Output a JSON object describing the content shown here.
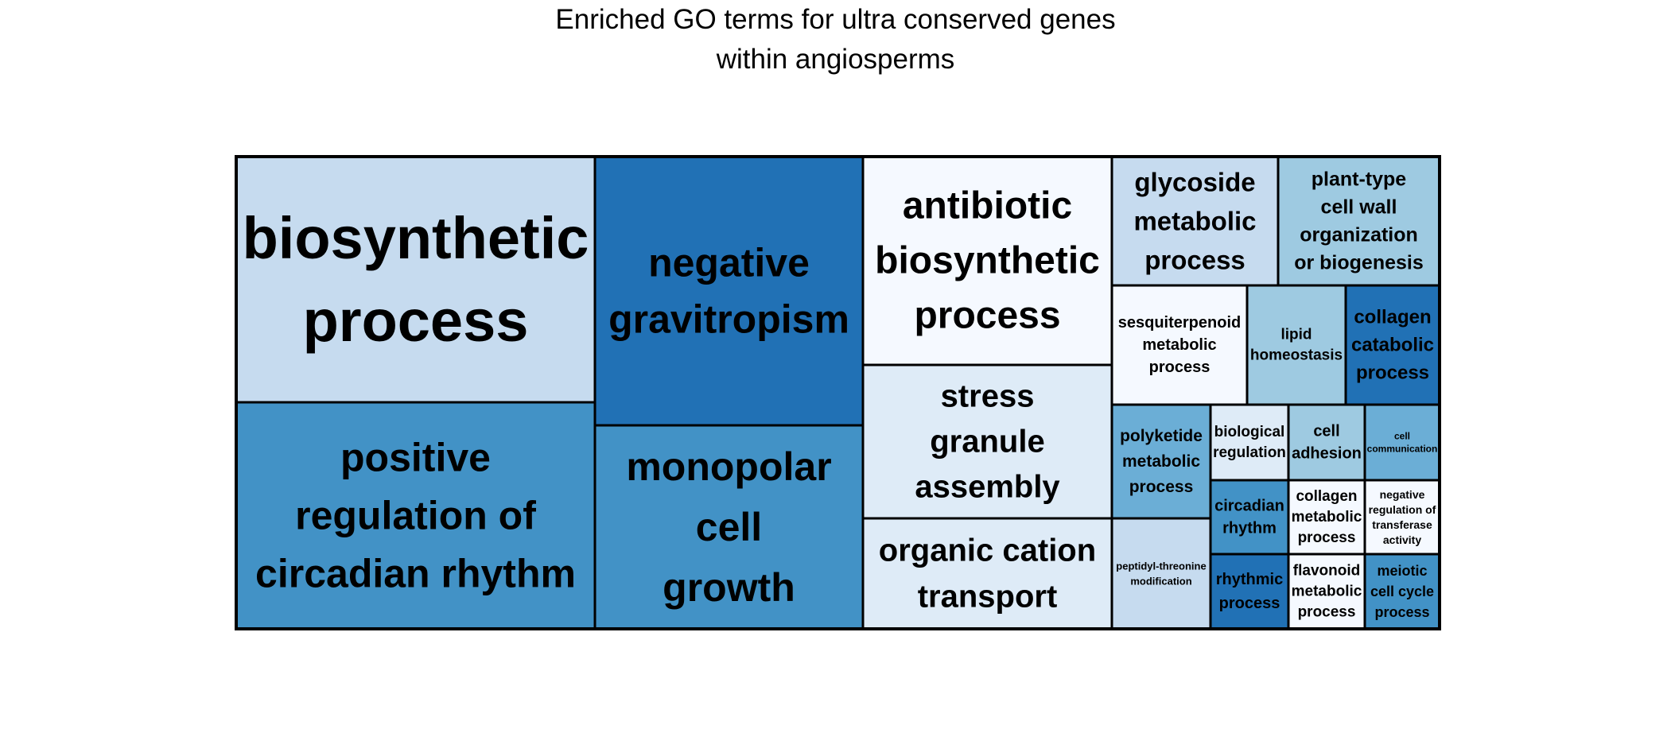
{
  "chart_data": {
    "type": "treemap",
    "title_lines": [
      "Enriched GO terms for ultra conserved genes",
      "within angiosperms"
    ],
    "colors": {
      "lightest": "#f5f9ff",
      "lighter": "#deebf7",
      "light": "#c6dbef",
      "mid_light": "#9ecae1",
      "mid": "#6baed6",
      "medium": "#4292c6",
      "dark": "#2171b5",
      "border": "#000000"
    },
    "tiles": [
      {
        "label": "biosynthetic process",
        "lines": [
          "biosynthetic",
          "process"
        ],
        "color": "light"
      },
      {
        "label": "positive regulation of circadian rhythm",
        "lines": [
          "positive",
          "regulation of",
          "circadian rhythm"
        ],
        "color": "medium"
      },
      {
        "label": "negative gravitropism",
        "lines": [
          "negative",
          "gravitropism"
        ],
        "color": "dark"
      },
      {
        "label": "monopolar cell growth",
        "lines": [
          "monopolar",
          "cell",
          "growth"
        ],
        "color": "medium"
      },
      {
        "label": "antibiotic biosynthetic process",
        "lines": [
          "antibiotic",
          "biosynthetic",
          "process"
        ],
        "color": "lightest"
      },
      {
        "label": "stress granule assembly",
        "lines": [
          "stress",
          "granule",
          "assembly"
        ],
        "color": "lighter"
      },
      {
        "label": "organic cation transport",
        "lines": [
          "organic cation",
          "transport"
        ],
        "color": "lighter"
      },
      {
        "label": "glycoside metabolic process",
        "lines": [
          "glycoside",
          "metabolic",
          "process"
        ],
        "color": "light"
      },
      {
        "label": "plant-type cell wall organization or biogenesis",
        "lines": [
          "plant-type",
          "cell wall",
          "organization",
          "or biogenesis"
        ],
        "color": "mid_light"
      },
      {
        "label": "sesquiterpenoid metabolic process",
        "lines": [
          "sesquiterpenoid",
          "metabolic",
          "process"
        ],
        "color": "lightest"
      },
      {
        "label": "lipid homeostasis",
        "lines": [
          "lipid",
          "homeostasis"
        ],
        "color": "mid_light"
      },
      {
        "label": "collagen catabolic process",
        "lines": [
          "collagen",
          "catabolic",
          "process"
        ],
        "color": "dark"
      },
      {
        "label": "polyketide metabolic process",
        "lines": [
          "polyketide",
          "metabolic",
          "process"
        ],
        "color": "mid"
      },
      {
        "label": "biological regulation",
        "lines": [
          "biological",
          "regulation"
        ],
        "color": "lighter"
      },
      {
        "label": "cell adhesion",
        "lines": [
          "cell",
          "adhesion"
        ],
        "color": "mid_light"
      },
      {
        "label": "cell communication",
        "lines": [
          "cell",
          "communication"
        ],
        "color": "mid"
      },
      {
        "label": "peptidyl-threonine modification",
        "lines": [
          "peptidyl-threonine",
          "modification"
        ],
        "color": "light"
      },
      {
        "label": "circadian rhythm",
        "lines": [
          "circadian",
          "rhythm"
        ],
        "color": "medium"
      },
      {
        "label": "collagen metabolic process",
        "lines": [
          "collagen",
          "metabolic",
          "process"
        ],
        "color": "lightest"
      },
      {
        "label": "negative regulation of transferase activity",
        "lines": [
          "negative",
          "regulation of",
          "transferase",
          "activity"
        ],
        "color": "lightest"
      },
      {
        "label": "rhythmic process",
        "lines": [
          "rhythmic",
          "process"
        ],
        "color": "dark"
      },
      {
        "label": "flavonoid metabolic process",
        "lines": [
          "flavonoid",
          "metabolic",
          "process"
        ],
        "color": "lightest"
      },
      {
        "label": "meiotic cell cycle process",
        "lines": [
          "meiotic",
          "cell cycle",
          "process"
        ],
        "color": "medium"
      }
    ]
  }
}
